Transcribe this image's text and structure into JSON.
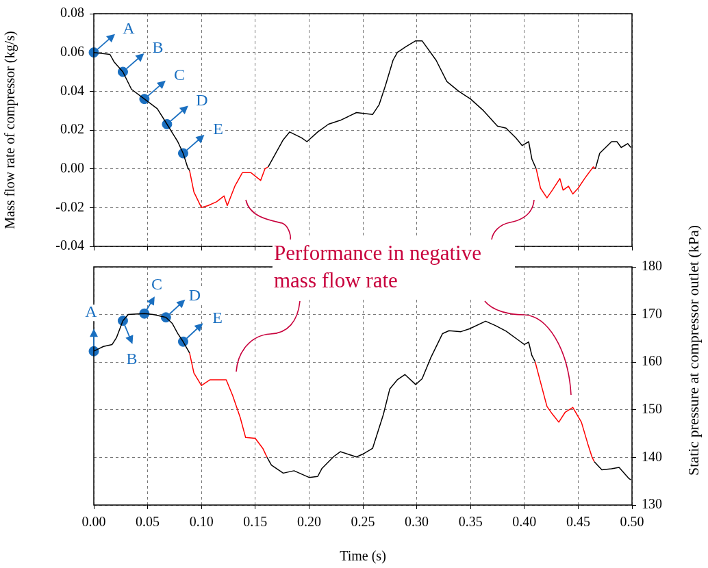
{
  "chart_data": [
    {
      "type": "line",
      "ylabel": "Mass flow rate of compressor (kg/s)",
      "xlim": [
        0,
        0.5
      ],
      "xticks": [
        0,
        0.05,
        0.1,
        0.15,
        0.2,
        0.25,
        0.3,
        0.35,
        0.4,
        0.45,
        0.5
      ],
      "ylim": [
        -0.04,
        0.08
      ],
      "yticks": [
        -0.04,
        -0.02,
        {
          "value": 0,
          "label": "0.00"
        },
        0.02,
        0.04,
        0.06,
        0.08
      ],
      "tick_labels": "y",
      "grid": true,
      "series": [
        {
          "color": "#000000",
          "x": [
            0,
            0.015,
            0.019,
            0.027,
            0.035,
            0.047,
            0.059,
            0.068,
            0.078,
            0.083,
            0.087,
            0.089,
            0.12,
            0.162,
            0.17,
            0.176,
            0.182,
            0.193,
            0.198,
            0.208,
            0.218,
            0.229,
            0.244,
            0.259,
            0.265,
            0.271,
            0.278,
            0.282,
            0.29,
            0.299,
            0.305,
            0.318,
            0.328,
            0.339,
            0.35,
            0.362,
            0.375,
            0.383,
            0.392,
            0.398,
            0.404,
            0.407,
            0.411,
            0.44,
            0.466,
            0.47,
            0.481,
            0.486,
            0.49,
            0.496,
            0.499
          ],
          "values": [
            0.06,
            0.059,
            0.055,
            0.05,
            0.041,
            0.036,
            0.031,
            0.023,
            0.014,
            0.008,
            0.001,
            -0.001,
            null,
            0.001,
            0.009,
            0.015,
            0.019,
            0.016,
            0.014,
            0.019,
            0.023,
            0.025,
            0.029,
            0.028,
            0.033,
            0.043,
            0.056,
            0.06,
            0.063,
            0.066,
            0.066,
            0.056,
            0.045,
            0.04,
            0.036,
            0.03,
            0.022,
            0.021,
            0.016,
            0.012,
            0.014,
            0.005,
            0.0,
            null,
            0.0,
            0.008,
            0.014,
            0.014,
            0.011,
            0.013,
            0.011
          ]
        },
        {
          "color": "#ff0000",
          "x": [
            0.089,
            0.093,
            0.1,
            0.106,
            0.114,
            0.121,
            0.124,
            0.131,
            0.138,
            0.146,
            0.155,
            0.159,
            0.162,
            0.3,
            0.411,
            0.415,
            0.421,
            0.426,
            0.433,
            0.436,
            0.441,
            0.445,
            0.45,
            0.456,
            0.464,
            0.466
          ],
          "values": [
            -0.001,
            -0.012,
            -0.02,
            -0.019,
            -0.017,
            -0.014,
            -0.019,
            -0.009,
            -0.002,
            -0.002,
            -0.006,
            0.0,
            0.001,
            null,
            0.0,
            -0.01,
            -0.015,
            -0.011,
            -0.005,
            -0.011,
            -0.009,
            -0.013,
            -0.01,
            -0.005,
            0.001,
            0.0
          ]
        },
        {
          "type": "scatter",
          "marker": "circle",
          "color": "#1a6fc0",
          "x": [
            0,
            0.027,
            0.047,
            0.068,
            0.083
          ],
          "values": [
            0.06,
            0.05,
            0.036,
            0.023,
            0.008
          ]
        }
      ],
      "annotations": [
        "Performance in negative mass flow rate",
        {
          "text": "A",
          "x": 0,
          "y": 0.06
        },
        {
          "text": "B",
          "x": 0.027,
          "y": 0.05
        },
        {
          "text": "C",
          "x": 0.047,
          "y": 0.036
        },
        {
          "text": "D",
          "x": 0.068,
          "y": 0.023
        },
        {
          "text": "E",
          "x": 0.083,
          "y": 0.008
        }
      ]
    },
    {
      "type": "line",
      "xlabel": "Time (s)",
      "ylabel": "Static pressure at compressor outlet (kPa)",
      "xlim": [
        0,
        0.5
      ],
      "xticks": [
        {
          "value": 0,
          "label": "0.00"
        },
        0.05,
        {
          "value": 0.1,
          "label": "0.10"
        },
        0.15,
        {
          "value": 0.2,
          "label": "0.20"
        },
        0.25,
        {
          "value": 0.3,
          "label": "0.30"
        },
        0.35,
        {
          "value": 0.4,
          "label": "0.40"
        },
        0.45,
        {
          "value": 0.5,
          "label": "0.50"
        }
      ],
      "ylim": [
        130,
        180
      ],
      "yticks": [
        130,
        140,
        150,
        160,
        170,
        180
      ],
      "grid": true,
      "series": [
        {
          "color": "#000000",
          "x": [
            0,
            0.009,
            0.017,
            0.021,
            0.027,
            0.032,
            0.038,
            0.047,
            0.055,
            0.067,
            0.073,
            0.078,
            0.083,
            0.089,
            0.12,
            0.161,
            0.165,
            0.176,
            0.186,
            0.2,
            0.208,
            0.212,
            0.223,
            0.229,
            0.244,
            0.25,
            0.259,
            0.269,
            0.275,
            0.282,
            0.289,
            0.299,
            0.305,
            0.313,
            0.324,
            0.33,
            0.341,
            0.349,
            0.364,
            0.373,
            0.383,
            0.394,
            0.4,
            0.404,
            0.407,
            0.41,
            0.44,
            0.465,
            0.472,
            0.481,
            0.488,
            0.497,
            0.499
          ],
          "values": [
            162.3,
            163.3,
            163.7,
            165.1,
            168.7,
            170.0,
            170.1,
            170.2,
            170.0,
            169.4,
            168.1,
            166.0,
            164.3,
            161.9,
            null,
            140.0,
            138.4,
            136.7,
            137.2,
            135.8,
            136.0,
            137.7,
            140.2,
            141.2,
            140.1,
            140.7,
            141.9,
            149.0,
            154.4,
            156.3,
            157.4,
            155.3,
            156.5,
            160.9,
            166.0,
            166.6,
            166.4,
            167.0,
            168.6,
            167.7,
            166.5,
            164.7,
            163.7,
            164.2,
            161.4,
            160.1,
            null,
            139.1,
            137.4,
            137.6,
            137.9,
            135.6,
            135.3
          ]
        },
        {
          "color": "#ff0000",
          "x": [
            0.089,
            0.093,
            0.1,
            0.108,
            0.118,
            0.123,
            0.129,
            0.136,
            0.141,
            0.15,
            0.157,
            0.161,
            0.3,
            0.41,
            0.415,
            0.421,
            0.426,
            0.432,
            0.438,
            0.445,
            0.453,
            0.459,
            0.463,
            0.465
          ],
          "values": [
            161.9,
            157.7,
            155.1,
            156.3,
            156.3,
            156.3,
            153.0,
            148.4,
            144.2,
            144.0,
            141.9,
            140.0,
            null,
            160.1,
            155.8,
            150.7,
            149.1,
            147.4,
            149.5,
            150.5,
            147.4,
            142.8,
            140.0,
            139.1
          ]
        },
        {
          "type": "scatter",
          "marker": "circle",
          "color": "#1a6fc0",
          "x": [
            0,
            0.027,
            0.047,
            0.067,
            0.083
          ],
          "values": [
            162.3,
            168.7,
            170.2,
            169.4,
            164.3
          ]
        }
      ],
      "annotations": [
        {
          "text": "A",
          "x": 0,
          "y": 162.3
        },
        {
          "text": "B",
          "x": 0.027,
          "y": 168.7
        },
        {
          "text": "C",
          "x": 0.047,
          "y": 170.2
        },
        {
          "text": "D",
          "x": 0.067,
          "y": 169.4
        },
        {
          "text": "E",
          "x": 0.083,
          "y": 164.3
        }
      ]
    }
  ]
}
